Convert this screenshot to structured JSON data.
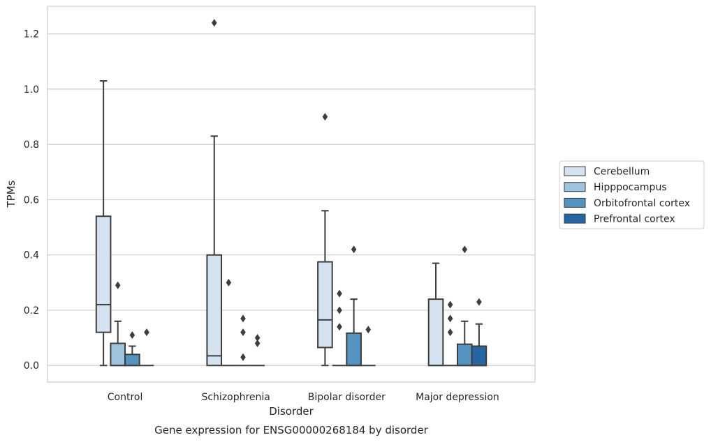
{
  "chart_data": {
    "type": "box",
    "title": "Gene expression for ENSG00000268184 by disorder",
    "xlabel": "Disorder",
    "ylabel": "TPMs",
    "ylim": [
      -0.06,
      1.3
    ],
    "yticks": [
      "0.0",
      "0.2",
      "0.4",
      "0.6",
      "0.8",
      "1.0",
      "1.2"
    ],
    "yticks_values": [
      0,
      0.2,
      0.4,
      0.6,
      0.8,
      1.0,
      1.2
    ],
    "grid": "horizontal",
    "legend_position": "right",
    "categories": [
      "Control",
      "Schizophrenia",
      "Bipolar disorder",
      "Major depression"
    ],
    "series": [
      {
        "name": "Cerebellum",
        "color": "#d5e3f1",
        "boxes": [
          {
            "q1": 0.12,
            "median": 0.22,
            "q3": 0.54,
            "whisker_low": 0.0,
            "whisker_high": 1.03,
            "outliers": []
          },
          {
            "q1": 0.0,
            "median": 0.035,
            "q3": 0.4,
            "whisker_low": 0.0,
            "whisker_high": 0.83,
            "outliers": [
              1.24
            ]
          },
          {
            "q1": 0.065,
            "median": 0.165,
            "q3": 0.375,
            "whisker_low": 0.0,
            "whisker_high": 0.56,
            "outliers": [
              0.9
            ]
          },
          {
            "q1": 0.0,
            "median": 0.0,
            "q3": 0.24,
            "whisker_low": 0.0,
            "whisker_high": 0.37,
            "outliers": []
          }
        ]
      },
      {
        "name": "Hipppocampus",
        "color": "#9dc3de",
        "boxes": [
          {
            "q1": 0.0,
            "median": 0.0,
            "q3": 0.08,
            "whisker_low": 0.0,
            "whisker_high": 0.16,
            "outliers": [
              0.29
            ]
          },
          {
            "q1": 0.0,
            "median": 0.0,
            "q3": 0.0,
            "whisker_low": 0.0,
            "whisker_high": 0.0,
            "outliers": [
              0.3
            ]
          },
          {
            "q1": 0.0,
            "median": 0.0,
            "q3": 0.0,
            "whisker_low": 0.0,
            "whisker_high": 0.0,
            "outliers": [
              0.26,
              0.2,
              0.14
            ]
          },
          {
            "q1": 0.0,
            "median": 0.0,
            "q3": 0.0,
            "whisker_low": 0.0,
            "whisker_high": 0.0,
            "outliers": [
              0.22,
              0.17,
              0.12
            ]
          }
        ]
      },
      {
        "name": "Orbitofrontal cortex",
        "color": "#5493c0",
        "boxes": [
          {
            "q1": 0.0,
            "median": 0.0,
            "q3": 0.04,
            "whisker_low": 0.0,
            "whisker_high": 0.07,
            "outliers": [
              0.11
            ]
          },
          {
            "q1": 0.0,
            "median": 0.0,
            "q3": 0.0,
            "whisker_low": 0.0,
            "whisker_high": 0.0,
            "outliers": [
              0.17,
              0.12,
              0.03
            ]
          },
          {
            "q1": 0.0,
            "median": 0.0,
            "q3": 0.117,
            "whisker_low": 0.0,
            "whisker_high": 0.24,
            "outliers": [
              0.42
            ]
          },
          {
            "q1": 0.0,
            "median": 0.0,
            "q3": 0.077,
            "whisker_low": 0.0,
            "whisker_high": 0.16,
            "outliers": [
              0.42
            ]
          }
        ]
      },
      {
        "name": "Prefrontal cortex",
        "color": "#2565a3",
        "boxes": [
          {
            "q1": 0.0,
            "median": 0.0,
            "q3": 0.0,
            "whisker_low": 0.0,
            "whisker_high": 0.0,
            "outliers": [
              0.12
            ]
          },
          {
            "q1": 0.0,
            "median": 0.0,
            "q3": 0.0,
            "whisker_low": 0.0,
            "whisker_high": 0.0,
            "outliers": [
              0.1,
              0.08
            ]
          },
          {
            "q1": 0.0,
            "median": 0.0,
            "q3": 0.0,
            "whisker_low": 0.0,
            "whisker_high": 0.0,
            "outliers": [
              0.13
            ]
          },
          {
            "q1": 0.0,
            "median": 0.0,
            "q3": 0.07,
            "whisker_low": 0.0,
            "whisker_high": 0.15,
            "outliers": [
              0.23
            ]
          }
        ]
      }
    ]
  }
}
